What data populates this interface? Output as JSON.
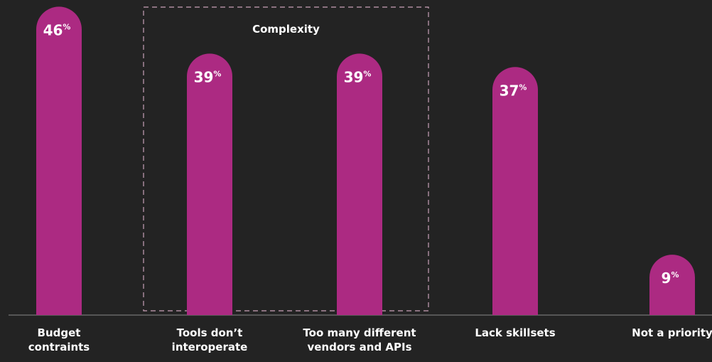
{
  "chart_data": {
    "type": "bar",
    "categories": [
      "Budget\ncontraints",
      "Tools don’t\ninteroperate",
      "Too many different\nvendors and APIs",
      "Lack skillsets",
      "Not a priority"
    ],
    "values": [
      46,
      39,
      39,
      37,
      9
    ],
    "value_unit": "%",
    "color": "#ac2a82",
    "ylim": [
      0,
      47
    ],
    "annotation": {
      "text": "Complexity",
      "categories": [
        1,
        2
      ]
    }
  }
}
